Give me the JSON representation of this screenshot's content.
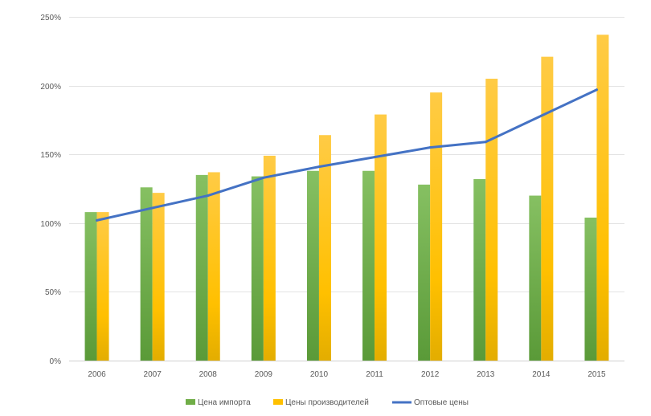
{
  "chart_data": {
    "type": "bar",
    "title": "",
    "xlabel": "",
    "ylabel": "",
    "categories": [
      "2006",
      "2007",
      "2008",
      "2009",
      "2010",
      "2011",
      "2012",
      "2013",
      "2014",
      "2015"
    ],
    "ylim": [
      0,
      250
    ],
    "yticks": [
      0,
      50,
      100,
      150,
      200,
      250
    ],
    "ytick_labels": [
      "0%",
      "50%",
      "100%",
      "150%",
      "200%",
      "250%"
    ],
    "grid": true,
    "legend_position": "bottom",
    "series": [
      {
        "name": "Цена импорта",
        "kind": "bar",
        "color": "#70ad47",
        "values": [
          108,
          126,
          135,
          134,
          138,
          138,
          128,
          132,
          120,
          104
        ]
      },
      {
        "name": "Цены производителей",
        "kind": "bar",
        "color": "#ffc000",
        "values": [
          108,
          122,
          137,
          149,
          164,
          179,
          195,
          205,
          221,
          237
        ]
      },
      {
        "name": "Оптовые цены",
        "kind": "line",
        "color": "#4472c4",
        "values": [
          102,
          111,
          120,
          133,
          141,
          148,
          155,
          159,
          178,
          197
        ]
      }
    ]
  }
}
